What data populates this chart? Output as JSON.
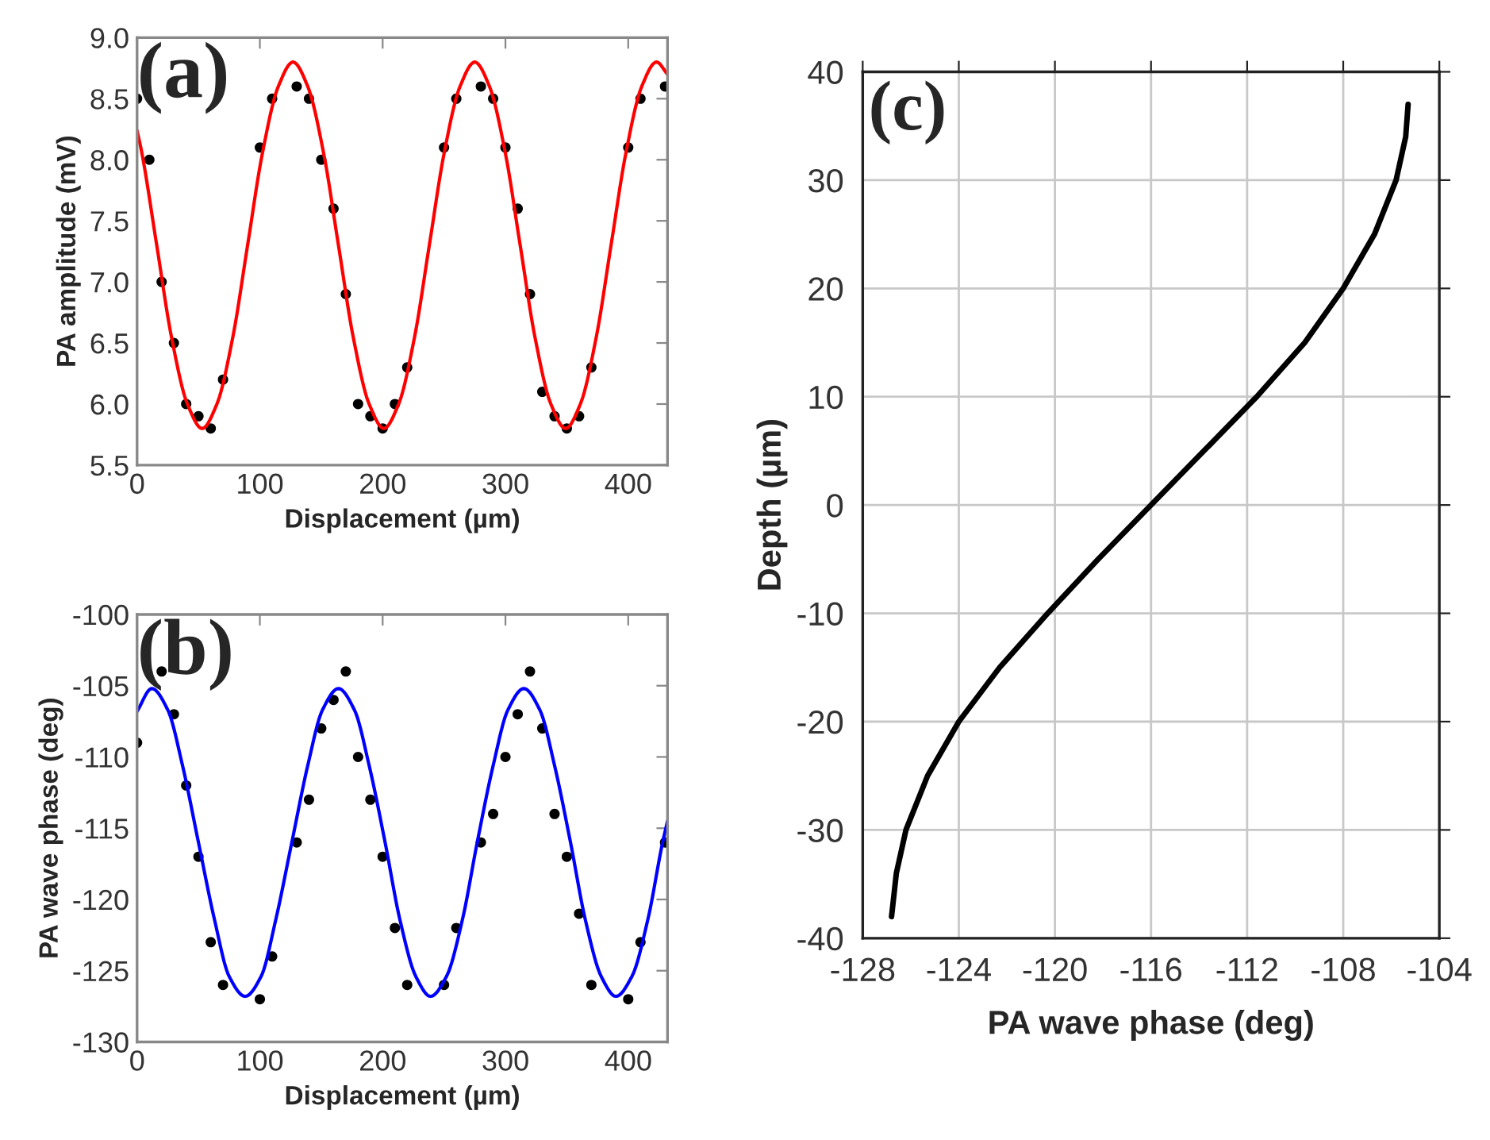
{
  "chart_data": [
    {
      "type": "scatter",
      "xlabel": "Displacement (µm)",
      "ylabel": "PA amplitude (mV)",
      "annotations": [
        "(a)"
      ],
      "xlim": [
        0,
        432
      ],
      "xticks": [
        0,
        100,
        200,
        300,
        400
      ],
      "ylim": [
        5.5,
        9.0
      ],
      "yticks": [
        {
          "value": 5.5,
          "label": "5.5"
        },
        {
          "value": 6.0,
          "label": "6.0"
        },
        {
          "value": 6.5,
          "label": "6.5"
        },
        {
          "value": 7.0,
          "label": "7.0"
        },
        {
          "value": 7.5,
          "label": "7.5"
        },
        {
          "value": 8.0,
          "label": "8.0"
        },
        {
          "value": 8.5,
          "label": "8.5"
        },
        {
          "value": 9.0,
          "label": "9.0"
        }
      ],
      "grid": false,
      "series": [
        {
          "type": "scatter",
          "marker": "circle",
          "color": "#000000",
          "x": [
            0,
            10,
            20,
            30,
            40,
            50,
            60,
            70,
            100,
            110,
            130,
            140,
            150,
            160,
            170,
            180,
            190,
            200,
            210,
            220,
            250,
            260,
            280,
            290,
            300,
            310,
            320,
            330,
            340,
            350,
            360,
            370,
            400,
            410,
            430
          ],
          "values": [
            8.5,
            8.0,
            7.0,
            6.5,
            6.0,
            5.9,
            5.8,
            6.2,
            8.1,
            8.5,
            8.6,
            8.5,
            8.0,
            7.6,
            6.9,
            6.0,
            5.9,
            5.8,
            6.0,
            6.3,
            8.1,
            8.5,
            8.6,
            8.5,
            8.1,
            7.6,
            6.9,
            6.1,
            5.9,
            5.8,
            5.9,
            6.3,
            8.1,
            8.5,
            8.6
          ]
        },
        {
          "type": "line",
          "color": "#ff0000",
          "x": [
            0,
            4,
            16,
            28,
            41,
            53,
            65,
            78,
            90,
            102,
            115,
            127,
            139,
            152,
            164,
            176,
            189,
            201,
            213,
            226,
            238,
            250,
            263,
            275,
            287,
            300,
            312,
            324,
            337,
            349,
            361,
            374,
            386,
            398,
            411,
            423,
            432
          ],
          "values": [
            8.24,
            8.05,
            7.3,
            6.55,
            6.0,
            5.8,
            6.0,
            6.55,
            7.3,
            8.05,
            8.6,
            8.8,
            8.6,
            8.05,
            7.3,
            6.55,
            6.0,
            5.8,
            6.0,
            6.55,
            7.3,
            8.05,
            8.6,
            8.8,
            8.6,
            8.05,
            7.3,
            6.55,
            6.0,
            5.8,
            6.0,
            6.55,
            7.3,
            8.05,
            8.6,
            8.8,
            8.7
          ]
        }
      ]
    },
    {
      "type": "scatter",
      "xlabel": "Displacement (µm)",
      "ylabel": "PA wave phase (deg)",
      "annotations": [
        "(b)"
      ],
      "xlim": [
        0,
        432
      ],
      "xticks": [
        0,
        100,
        200,
        300,
        400
      ],
      "ylim": [
        -130,
        -100
      ],
      "yticks": [
        -130,
        -125,
        -120,
        -115,
        -110,
        -105,
        -100
      ],
      "grid": false,
      "series": [
        {
          "type": "scatter",
          "marker": "circle",
          "color": "#000000",
          "x": [
            0,
            20,
            30,
            40,
            50,
            60,
            70,
            100,
            110,
            130,
            140,
            150,
            160,
            170,
            180,
            190,
            200,
            210,
            220,
            250,
            260,
            280,
            290,
            300,
            310,
            320,
            330,
            340,
            350,
            360,
            370,
            400,
            410,
            430
          ],
          "values": [
            -109,
            -104,
            -107,
            -112,
            -117,
            -123,
            -126,
            -127,
            -124,
            -116,
            -113,
            -108,
            -106,
            -104,
            -110,
            -113,
            -117,
            -122,
            -126,
            -126,
            -122,
            -116,
            -114,
            -110,
            -107,
            -104,
            -108,
            -114,
            -117,
            -121,
            -126,
            -127,
            -123,
            -116
          ]
        },
        {
          "type": "line",
          "color": "#0000ff",
          "x": [
            0,
            12,
            25,
            37,
            50,
            63,
            75,
            88,
            101,
            113,
            126,
            139,
            151,
            164,
            177,
            189,
            202,
            214,
            227,
            239,
            252,
            265,
            277,
            290,
            302,
            315,
            328,
            340,
            353,
            365,
            378,
            390,
            403,
            416,
            428,
            432
          ],
          "values": [
            -106.8,
            -105.2,
            -106.7,
            -110.6,
            -116,
            -121.4,
            -125.4,
            -126.8,
            -125.4,
            -121.4,
            -116,
            -110.6,
            -106.7,
            -105.2,
            -106.7,
            -110.6,
            -116,
            -121.4,
            -125.4,
            -126.8,
            -125.4,
            -121.4,
            -116,
            -110.6,
            -106.7,
            -105.2,
            -106.7,
            -110.6,
            -116,
            -121.4,
            -125.4,
            -126.8,
            -125.4,
            -121.4,
            -116,
            -114.5
          ]
        }
      ]
    },
    {
      "type": "line",
      "xlabel": "PA wave phase (deg)",
      "ylabel": "Depth (µm)",
      "annotations": [
        "(c)"
      ],
      "xlim": [
        -128,
        -104
      ],
      "xticks": [
        -128,
        -124,
        -120,
        -116,
        -112,
        -108,
        -104
      ],
      "ylim": [
        -40,
        40
      ],
      "yticks": [
        -40,
        -30,
        -20,
        -10,
        0,
        10,
        20,
        30,
        40
      ],
      "grid": true,
      "series": [
        {
          "type": "line",
          "color": "#000000",
          "x": [
            -126.8,
            -126.6,
            -126.2,
            -125.3,
            -124,
            -122.3,
            -120.3,
            -118.2,
            -116,
            -113.8,
            -111.6,
            -109.6,
            -108,
            -106.7,
            -105.8,
            -105.4,
            -105.3
          ],
          "values": [
            -38,
            -34,
            -30,
            -25,
            -20,
            -15,
            -10,
            -5,
            0,
            5,
            10,
            15,
            20,
            25,
            30,
            34,
            37
          ]
        }
      ]
    }
  ]
}
